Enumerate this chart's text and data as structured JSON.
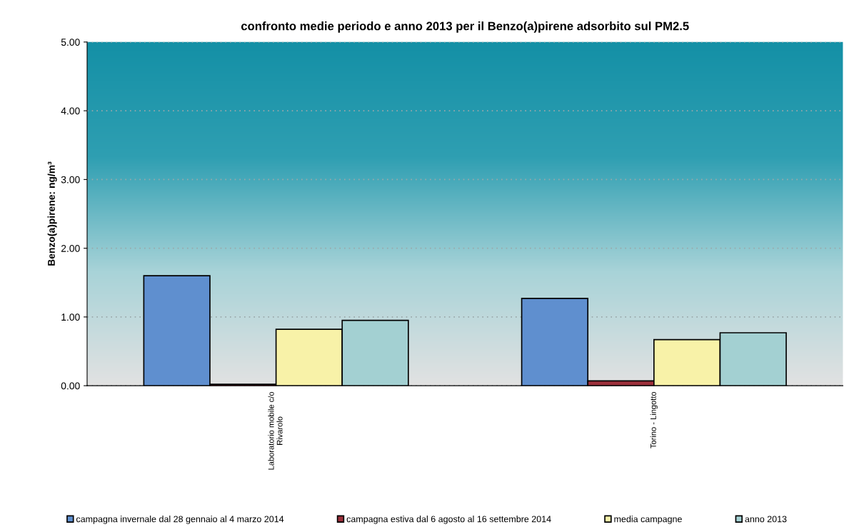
{
  "chart_data": {
    "type": "bar",
    "title": "confronto medie periodo e anno 2013 per il Benzo(a)pirene adsorbito sul PM2.5",
    "ylabel": "Benzo(a)pirene: ng/m³",
    "categories": [
      "Laboratorio mobile c/o\nRivarolo",
      "Torino - Lingotto"
    ],
    "series": [
      {
        "name": "campagna invernale dal 28 gennaio al 4 marzo 2014",
        "color": "#5f8fcf",
        "values": [
          1.6,
          1.27
        ]
      },
      {
        "name": "campagna estiva dal 6 agosto al 16 settembre 2014",
        "color": "#9b2f3a",
        "values": [
          0.02,
          0.07
        ]
      },
      {
        "name": "media campagne",
        "color": "#f8f2a8",
        "values": [
          0.82,
          0.67
        ]
      },
      {
        "name": "anno 2013",
        "color": "#a3d0d2",
        "values": [
          0.95,
          0.77
        ]
      }
    ],
    "ylim": [
      0,
      5
    ],
    "yticks": [
      {
        "value": 0,
        "label": "0.00"
      },
      {
        "value": 1,
        "label": "1.00"
      },
      {
        "value": 2,
        "label": "2.00"
      },
      {
        "value": 3,
        "label": "3.00"
      },
      {
        "value": 4,
        "label": "4.00"
      },
      {
        "value": 5,
        "label": "5.00"
      }
    ],
    "grid": "y",
    "legend": "bottom"
  }
}
